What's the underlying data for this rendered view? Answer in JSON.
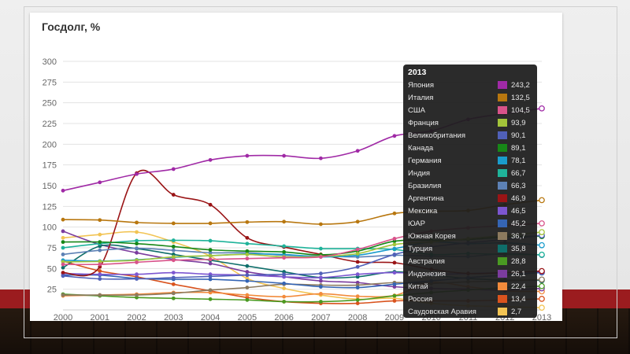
{
  "chart_data": {
    "type": "line",
    "title": "Госдолг, %",
    "xlabel": "",
    "ylabel": "",
    "x": [
      "2000",
      "2001",
      "2002",
      "2003",
      "2004",
      "2005",
      "2006",
      "2007",
      "2008",
      "2009",
      "2010",
      "2011",
      "2012",
      "2013"
    ],
    "ylim": [
      0,
      300
    ],
    "yticks": [
      25,
      50,
      75,
      100,
      125,
      150,
      175,
      200,
      225,
      250,
      275,
      300
    ],
    "grid": true,
    "tooltip": {
      "year": "2013"
    },
    "series": [
      {
        "name": "Япония",
        "color": "#a02aa6",
        "label": "243,2",
        "values": [
          144,
          154,
          164,
          170,
          181,
          186,
          186,
          183,
          192,
          210,
          216,
          230,
          237,
          243.2
        ]
      },
      {
        "name": "Италия",
        "color": "#b8770f",
        "label": "132,5",
        "values": [
          109,
          108.5,
          105.5,
          104.5,
          104.5,
          106,
          106.5,
          103.5,
          106.5,
          116.5,
          119,
          120,
          127,
          132.5
        ]
      },
      {
        "name": "США",
        "color": "#d8538a",
        "label": "104,5",
        "values": [
          55,
          55,
          57.5,
          60,
          61,
          62,
          63,
          64,
          73,
          86,
          95,
          99,
          102,
          104.5
        ]
      },
      {
        "name": "Франция",
        "color": "#a3c43a",
        "label": "93,9",
        "values": [
          58,
          58.5,
          60,
          64,
          65.5,
          67,
          64,
          64.5,
          68,
          79,
          82,
          86,
          90,
          93.9
        ]
      },
      {
        "name": "Великобритания",
        "color": "#5060b8",
        "label": "90,1",
        "values": [
          41,
          37.5,
          37.5,
          39,
          40.5,
          42,
          43,
          44,
          52,
          67,
          76,
          81,
          85,
          90.1
        ]
      },
      {
        "name": "Канада",
        "color": "#178717",
        "label": "89,1",
        "values": [
          82,
          82,
          80,
          76.5,
          72.5,
          71,
          70,
          66.5,
          71,
          83,
          84,
          85,
          88,
          89.1
        ]
      },
      {
        "name": "Германия",
        "color": "#1a9ccc",
        "label": "78,1",
        "values": [
          60,
          59,
          60.5,
          63.5,
          65.5,
          67.5,
          67,
          64,
          66,
          74,
          82,
          80,
          81,
          78.1
        ]
      },
      {
        "name": "Индия",
        "color": "#1fb39a",
        "label": "66,7",
        "values": [
          75,
          80,
          83.5,
          84,
          83.5,
          80,
          77,
          74,
          74,
          73,
          67,
          68,
          67,
          66.7
        ]
      },
      {
        "name": "Бразилия",
        "color": "#5d81b5",
        "label": "66,3",
        "values": [
          67,
          72,
          74.5,
          72,
          69,
          69,
          66,
          65,
          64,
          66,
          65,
          64.5,
          68,
          66.3
        ]
      },
      {
        "name": "Аргентина",
        "color": "#9a1416",
        "label": "46,9",
        "values": [
          45,
          52,
          165,
          139,
          127,
          87,
          76,
          67,
          58,
          57,
          49,
          44,
          45,
          46.9
        ]
      },
      {
        "name": "Мексика",
        "color": "#7c56d1",
        "label": "46,5",
        "values": [
          44,
          43,
          43,
          45,
          43,
          42,
          40,
          39,
          43,
          45,
          43,
          44,
          45,
          46.5
        ]
      },
      {
        "name": "ЮАР",
        "color": "#3565b4",
        "label": "45,2",
        "values": [
          42,
          42,
          38,
          37,
          37,
          35,
          32,
          28,
          27,
          31,
          35,
          39,
          42,
          45.2
        ]
      },
      {
        "name": "Южная Корея",
        "color": "#8c7a5e",
        "label": "36,7",
        "values": [
          18,
          18,
          18,
          20,
          24,
          27,
          31,
          30,
          30,
          33,
          32,
          34,
          35,
          36.7
        ]
      },
      {
        "name": "Турция",
        "color": "#0f6e6a",
        "label": "35,8",
        "values": [
          51,
          77,
          74,
          67,
          60,
          53,
          46,
          39,
          40,
          46,
          42,
          38,
          36,
          35.8
        ]
      },
      {
        "name": "Австралия",
        "color": "#4a9a22",
        "label": "28,8",
        "values": [
          19,
          17,
          15,
          14,
          13,
          12,
          10,
          10,
          12,
          17,
          21,
          24,
          27,
          28.8
        ]
      },
      {
        "name": "Индонезия",
        "color": "#7b3c9e",
        "label": "26,1",
        "values": [
          95,
          79,
          69,
          61,
          56,
          46,
          40,
          35,
          33,
          28,
          26,
          25,
          24,
          26.1
        ]
      },
      {
        "name": "Китай",
        "color": "#f28b3c",
        "label": "22,4",
        "values": [
          17,
          18,
          19,
          21,
          21,
          18,
          16,
          19.5,
          16.5,
          17.5,
          33,
          28,
          23,
          22.4
        ]
      },
      {
        "name": "Россия",
        "color": "#d9531e",
        "label": "13,4",
        "values": [
          59,
          47,
          40,
          31,
          23,
          15,
          10,
          8,
          8,
          11,
          11,
          11,
          12,
          13.4
        ]
      },
      {
        "name": "Саудовская Аравия",
        "color": "#f2c454",
        "label": "2,7",
        "values": [
          87,
          91,
          94,
          82,
          65,
          38,
          26,
          18,
          13,
          14,
          8,
          5,
          4,
          2.7
        ]
      }
    ]
  }
}
